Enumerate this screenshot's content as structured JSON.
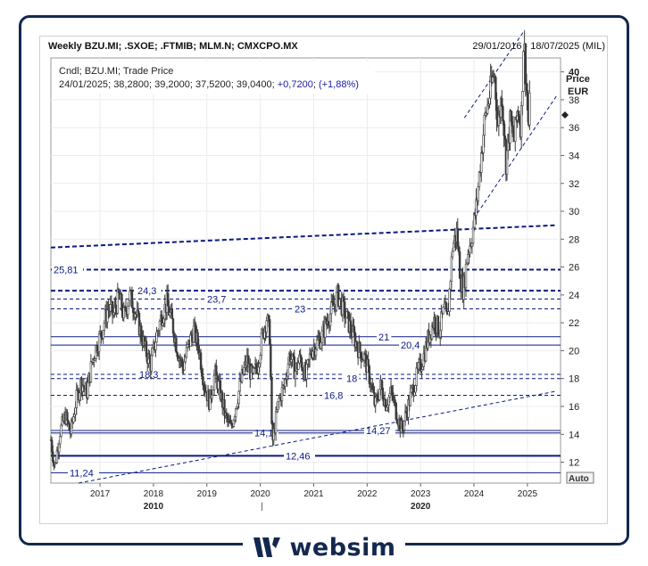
{
  "header": {
    "title": "Weekly BZU.MI; .SXOE; .FTMIB; MLM.N; CMXCPO.MX",
    "date_range": "29/01/2016 - 18/07/2025 (MIL)"
  },
  "brand": {
    "name": "websim",
    "color": "#13284e"
  },
  "chart_data": {
    "type": "candlestick",
    "series_label": "Cndl; BZU.MI; Trade Price",
    "last_bar": {
      "date": "24/01/2025",
      "open": "38,2800",
      "high": "39,2000",
      "low": "37,5200",
      "close": "39,0400",
      "change": "+0,7200",
      "change_pct": "(+1,88%)"
    },
    "y_axis": {
      "title": "Price",
      "unit": "EUR",
      "range": [
        10.5,
        41
      ],
      "ticks": [
        "40",
        "38",
        "36",
        "34",
        "32",
        "30",
        "28",
        "26",
        "24",
        "22",
        "20",
        "18",
        "16",
        "14",
        "12"
      ]
    },
    "x_axis": {
      "range": [
        2016.08,
        2025.62
      ],
      "ticks": [
        "2017",
        "2018",
        "2019",
        "2020",
        "2021",
        "2022",
        "2023",
        "2024",
        "2025"
      ],
      "major_labels": [
        "2010",
        "2020"
      ],
      "major_marker": "|"
    },
    "auto_button": "Auto",
    "price_path": [
      [
        2016.08,
        13.6
      ],
      [
        2016.15,
        11.6
      ],
      [
        2016.25,
        14.2
      ],
      [
        2016.35,
        15.3
      ],
      [
        2016.45,
        14.1
      ],
      [
        2016.55,
        16.4
      ],
      [
        2016.65,
        17.8
      ],
      [
        2016.75,
        17.0
      ],
      [
        2016.85,
        19.2
      ],
      [
        2016.95,
        20.5
      ],
      [
        2017.05,
        21.6
      ],
      [
        2017.15,
        23.1
      ],
      [
        2017.25,
        22.6
      ],
      [
        2017.35,
        23.9
      ],
      [
        2017.45,
        22.4
      ],
      [
        2017.55,
        24.0
      ],
      [
        2017.65,
        23.0
      ],
      [
        2017.75,
        21.5
      ],
      [
        2017.85,
        20.0
      ],
      [
        2017.95,
        19.0
      ],
      [
        2018.05,
        21.0
      ],
      [
        2018.15,
        22.5
      ],
      [
        2018.25,
        23.4
      ],
      [
        2018.35,
        22.0
      ],
      [
        2018.45,
        20.0
      ],
      [
        2018.55,
        18.8
      ],
      [
        2018.65,
        20.3
      ],
      [
        2018.75,
        21.5
      ],
      [
        2018.85,
        20.2
      ],
      [
        2018.95,
        17.6
      ],
      [
        2019.05,
        16.3
      ],
      [
        2019.15,
        18.4
      ],
      [
        2019.25,
        17.0
      ],
      [
        2019.35,
        15.2
      ],
      [
        2019.45,
        14.4
      ],
      [
        2019.55,
        16.2
      ],
      [
        2019.65,
        18.0
      ],
      [
        2019.75,
        19.3
      ],
      [
        2019.85,
        18.0
      ],
      [
        2019.95,
        19.0
      ],
      [
        2020.05,
        21.3
      ],
      [
        2020.12,
        22.4
      ],
      [
        2020.18,
        21.0
      ],
      [
        2020.22,
        13.2
      ],
      [
        2020.28,
        14.8
      ],
      [
        2020.35,
        16.5
      ],
      [
        2020.45,
        17.5
      ],
      [
        2020.55,
        19.8
      ],
      [
        2020.65,
        18.5
      ],
      [
        2020.75,
        19.5
      ],
      [
        2020.85,
        18.0
      ],
      [
        2020.95,
        20.0
      ],
      [
        2021.05,
        20.5
      ],
      [
        2021.15,
        21.0
      ],
      [
        2021.25,
        22.2
      ],
      [
        2021.35,
        23.0
      ],
      [
        2021.45,
        24.0
      ],
      [
        2021.55,
        23.0
      ],
      [
        2021.65,
        22.0
      ],
      [
        2021.75,
        21.0
      ],
      [
        2021.85,
        20.0
      ],
      [
        2021.95,
        19.5
      ],
      [
        2022.05,
        18.0
      ],
      [
        2022.15,
        16.0
      ],
      [
        2022.25,
        17.5
      ],
      [
        2022.35,
        16.2
      ],
      [
        2022.45,
        17.0
      ],
      [
        2022.55,
        15.5
      ],
      [
        2022.65,
        14.3
      ],
      [
        2022.75,
        15.8
      ],
      [
        2022.85,
        17.2
      ],
      [
        2022.95,
        18.4
      ],
      [
        2023.05,
        19.5
      ],
      [
        2023.15,
        21.0
      ],
      [
        2023.25,
        22.2
      ],
      [
        2023.35,
        21.5
      ],
      [
        2023.45,
        23.0
      ],
      [
        2023.5,
        22.0
      ],
      [
        2023.6,
        27.5
      ],
      [
        2023.68,
        28.5
      ],
      [
        2023.75,
        25.0
      ],
      [
        2023.8,
        24.3
      ],
      [
        2023.88,
        27.0
      ],
      [
        2023.95,
        28.0
      ],
      [
        2024.05,
        30.5
      ],
      [
        2024.12,
        33.5
      ],
      [
        2024.2,
        36.5
      ],
      [
        2024.3,
        38.5
      ],
      [
        2024.38,
        40.0
      ],
      [
        2024.45,
        36.0
      ],
      [
        2024.52,
        38.5
      ],
      [
        2024.6,
        33.5
      ],
      [
        2024.68,
        36.5
      ],
      [
        2024.75,
        35.0
      ],
      [
        2024.82,
        37.5
      ],
      [
        2024.88,
        36.0
      ],
      [
        2024.93,
        42.5
      ],
      [
        2024.98,
        39.0
      ],
      [
        2025.02,
        36.0
      ],
      [
        2025.06,
        39.0
      ]
    ],
    "horizontal_levels": [
      {
        "value": 25.81,
        "label": "25,81",
        "style": "dashed",
        "weight": "bold"
      },
      {
        "value": 24.3,
        "label": "24,3",
        "style": "dashed",
        "weight": "bold"
      },
      {
        "value": 23.7,
        "label": "23,7",
        "style": "dashed",
        "weight": "normal"
      },
      {
        "value": 23,
        "label": "23",
        "style": "dashed",
        "weight": "normal"
      },
      {
        "value": 21,
        "label": "21",
        "style": "solid",
        "weight": "normal"
      },
      {
        "value": 20.4,
        "label": "20,4",
        "style": "solid",
        "weight": "normal"
      },
      {
        "value": 18.3,
        "label": "18,3",
        "style": "dashed",
        "weight": "normal"
      },
      {
        "value": 18,
        "label": "18",
        "style": "dashed",
        "weight": "normal"
      },
      {
        "value": 16.8,
        "label": "16,8",
        "style": "dashed",
        "weight": "normal"
      },
      {
        "value": 14.1,
        "label": "14,1",
        "style": "solid",
        "weight": "normal"
      },
      {
        "value": 14.27,
        "label": "14,27",
        "style": "solid",
        "weight": "normal"
      },
      {
        "value": 12.46,
        "label": "12,46",
        "style": "solid",
        "weight": "bold"
      },
      {
        "value": 11.24,
        "label": "11,24",
        "style": "solid",
        "weight": "normal"
      }
    ],
    "trendlines": [
      {
        "from": [
          2016.08,
          27.4
        ],
        "to": [
          2025.55,
          29.0
        ],
        "style": "dashed",
        "weight": "bold"
      },
      {
        "from": [
          2016.6,
          10.5
        ],
        "to": [
          2025.55,
          17.1
        ],
        "style": "dashed",
        "weight": "normal"
      },
      {
        "from": [
          2024.0,
          29.5
        ],
        "to": [
          2025.55,
          38.3
        ],
        "style": "dashed",
        "weight": "normal"
      },
      {
        "from": [
          2023.82,
          36.7
        ],
        "to": [
          2024.95,
          43.0
        ],
        "style": "dashed",
        "weight": "normal"
      }
    ],
    "colors": {
      "candles": "#3a3a3a",
      "levels": "#0a1a82",
      "axis_text": "#222222",
      "frame": "#13284e"
    }
  }
}
